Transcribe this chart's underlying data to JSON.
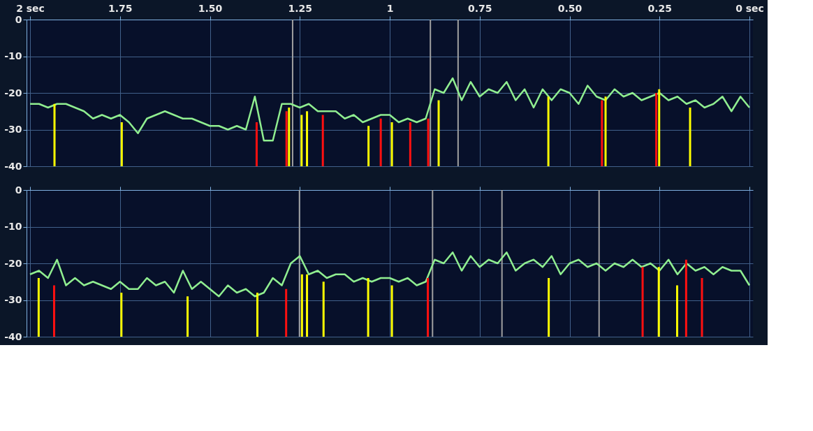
{
  "chart_data": [
    {
      "type": "line",
      "xlim": [
        2,
        0
      ],
      "ylim": [
        -40,
        0
      ],
      "xticks": [
        {
          "value": 2,
          "label": "2 sec"
        },
        1.75,
        {
          "value": 1.5,
          "label": "1.50"
        },
        1.25,
        1,
        0.75,
        {
          "value": 0.5,
          "label": "0.50"
        },
        0.25,
        {
          "value": 0,
          "label": "0 sec"
        }
      ],
      "yticks": [
        0,
        -10,
        -20,
        -30,
        -40
      ],
      "grid": true,
      "x": [
        2,
        1.975,
        1.95,
        1.925,
        1.9,
        1.875,
        1.85,
        1.825,
        1.8,
        1.775,
        1.75,
        1.725,
        1.7,
        1.675,
        1.65,
        1.625,
        1.6,
        1.575,
        1.55,
        1.525,
        1.5,
        1.475,
        1.45,
        1.425,
        1.4,
        1.375,
        1.35,
        1.325,
        1.3,
        1.275,
        1.25,
        1.225,
        1.2,
        1.175,
        1.15,
        1.125,
        1.1,
        1.075,
        1.05,
        1.025,
        1,
        0.975,
        0.95,
        0.925,
        0.9,
        0.875,
        0.85,
        0.825,
        0.8,
        0.775,
        0.75,
        0.725,
        0.7,
        0.675,
        0.65,
        0.625,
        0.6,
        0.575,
        0.55,
        0.525,
        0.5,
        0.475,
        0.45,
        0.425,
        0.4,
        0.375,
        0.35,
        0.325,
        0.3,
        0.275,
        0.25,
        0.225,
        0.2,
        0.175,
        0.15,
        0.125,
        0.1,
        0.075,
        0.05,
        0.025,
        0
      ],
      "series": [
        {
          "color": "#90ee90",
          "values": [
            -23,
            -23,
            -24,
            -23,
            -23,
            -24,
            -25,
            -27,
            -26,
            -27,
            -26,
            -28,
            -31,
            -27,
            -26,
            -25,
            -26,
            -27,
            -27,
            -28,
            -29,
            -29,
            -30,
            -29,
            -30,
            -21,
            -33,
            -33,
            -23,
            -23,
            -24,
            -23,
            -25,
            -25,
            -25,
            -27,
            -26,
            -28,
            -27,
            -26,
            -26,
            -28,
            -27,
            -28,
            -27,
            -19,
            -20,
            -16,
            -22,
            -17,
            -21,
            -19,
            -20,
            -17,
            -22,
            -19,
            -24,
            -19,
            -22,
            -19,
            -20,
            -23,
            -18,
            -21,
            -22,
            -19,
            -21,
            -20,
            -22,
            -21,
            -20,
            -22,
            -21,
            -23,
            -22,
            -24,
            -23,
            -21,
            -25,
            -21,
            -24
          ]
        },
        {
          "type": "bar",
          "color": "#ffff00",
          "x": [
            1.932,
            1.745,
            1.28,
            1.245,
            1.23,
            1.059,
            0.994,
            0.864,
            0.559,
            0.4,
            0.251,
            0.165
          ],
          "base": [
            -40,
            -40,
            -40,
            -40,
            -40,
            -40,
            -40,
            -40,
            -40,
            -40,
            -40,
            -40
          ],
          "values": [
            17,
            12,
            16,
            14,
            15,
            11,
            12,
            18,
            19,
            19,
            21,
            16
          ]
        },
        {
          "type": "bar",
          "color": "#ff1010",
          "x": [
            1.37,
            1.287,
            1.186,
            1.025,
            0.943,
            0.893,
            0.41,
            0.259
          ],
          "base": [
            -40,
            -40,
            -40,
            -40,
            -40,
            -40,
            -40,
            -40
          ],
          "values": [
            12,
            15,
            14,
            13,
            12,
            13,
            18,
            20
          ]
        }
      ],
      "ref_lines": [
        {
          "axis": "x",
          "value": 1.27,
          "color": "#a0a0a0"
        },
        {
          "axis": "x",
          "value": 0.887,
          "color": "#a0a0a0"
        },
        {
          "axis": "x",
          "value": 0.81,
          "color": "#a0a0a0"
        }
      ]
    },
    {
      "type": "line",
      "xlim": [
        2,
        0
      ],
      "ylim": [
        -40,
        0
      ],
      "xticks": [
        {
          "value": 2,
          "label": null
        },
        {
          "value": 1.75,
          "label": null
        },
        {
          "value": 1.5,
          "label": null
        },
        {
          "value": 1.25,
          "label": null
        },
        {
          "value": 1,
          "label": null
        },
        {
          "value": 0.75,
          "label": null
        },
        {
          "value": 0.5,
          "label": null
        },
        {
          "value": 0.25,
          "label": null
        },
        {
          "value": 0,
          "label": null
        }
      ],
      "yticks": [
        0,
        -10,
        -20,
        -30,
        -40
      ],
      "grid": true,
      "tick_labels": "y",
      "x": [
        2,
        1.975,
        1.95,
        1.925,
        1.9,
        1.875,
        1.85,
        1.825,
        1.8,
        1.775,
        1.75,
        1.725,
        1.7,
        1.675,
        1.65,
        1.625,
        1.6,
        1.575,
        1.55,
        1.525,
        1.5,
        1.475,
        1.45,
        1.425,
        1.4,
        1.375,
        1.35,
        1.325,
        1.3,
        1.275,
        1.25,
        1.225,
        1.2,
        1.175,
        1.15,
        1.125,
        1.1,
        1.075,
        1.05,
        1.025,
        1,
        0.975,
        0.95,
        0.925,
        0.9,
        0.875,
        0.85,
        0.825,
        0.8,
        0.775,
        0.75,
        0.725,
        0.7,
        0.675,
        0.65,
        0.625,
        0.6,
        0.575,
        0.55,
        0.525,
        0.5,
        0.475,
        0.45,
        0.425,
        0.4,
        0.375,
        0.35,
        0.325,
        0.3,
        0.275,
        0.25,
        0.225,
        0.2,
        0.175,
        0.15,
        0.125,
        0.1,
        0.075,
        0.05,
        0.025,
        0
      ],
      "series": [
        {
          "color": "#90ee90",
          "values": [
            -23,
            -22,
            -24,
            -19,
            -26,
            -24,
            -26,
            -25,
            -26,
            -27,
            -25,
            -27,
            -27,
            -24,
            -26,
            -25,
            -28,
            -22,
            -27,
            -25,
            -27,
            -29,
            -26,
            -28,
            -27,
            -29,
            -28,
            -24,
            -26,
            -20,
            -18,
            -23,
            -22,
            -24,
            -23,
            -23,
            -25,
            -24,
            -25,
            -24,
            -24,
            -25,
            -24,
            -26,
            -25,
            -19,
            -20,
            -17,
            -22,
            -18,
            -21,
            -19,
            -20,
            -17,
            -22,
            -20,
            -19,
            -21,
            -18,
            -23,
            -20,
            -19,
            -21,
            -20,
            -22,
            -20,
            -21,
            -19,
            -21,
            -20,
            -22,
            -19,
            -23,
            -20,
            -22,
            -21,
            -23,
            -21,
            -22,
            -22,
            -26
          ]
        },
        {
          "type": "bar",
          "color": "#ffff00",
          "x": [
            1.976,
            1.746,
            1.562,
            1.368,
            1.244,
            1.23,
            1.184,
            1.06,
            0.994,
            0.558,
            0.252,
            0.201
          ],
          "base": [
            -40,
            -40,
            -40,
            -40,
            -40,
            -40,
            -40,
            -40,
            -40,
            -40,
            -40,
            -40
          ],
          "values": [
            16,
            12,
            11,
            12,
            17,
            17,
            15,
            16,
            14,
            16,
            19,
            14
          ]
        },
        {
          "type": "bar",
          "color": "#ff1010",
          "x": [
            1.933,
            1.288,
            0.894,
            0.297,
            0.176,
            0.132
          ],
          "base": [
            -40,
            -40,
            -40,
            -40,
            -40,
            -40
          ],
          "values": [
            14,
            13,
            16,
            19,
            21,
            16
          ]
        }
      ],
      "ref_lines": [
        {
          "axis": "x",
          "value": 1.251,
          "color": "#a0a0a0"
        },
        {
          "axis": "x",
          "value": 0.881,
          "color": "#a0a0a0"
        },
        {
          "axis": "x",
          "value": 0.688,
          "color": "#a0a0a0"
        },
        {
          "axis": "x",
          "value": 0.418,
          "color": "#a0a0a0"
        }
      ]
    }
  ]
}
